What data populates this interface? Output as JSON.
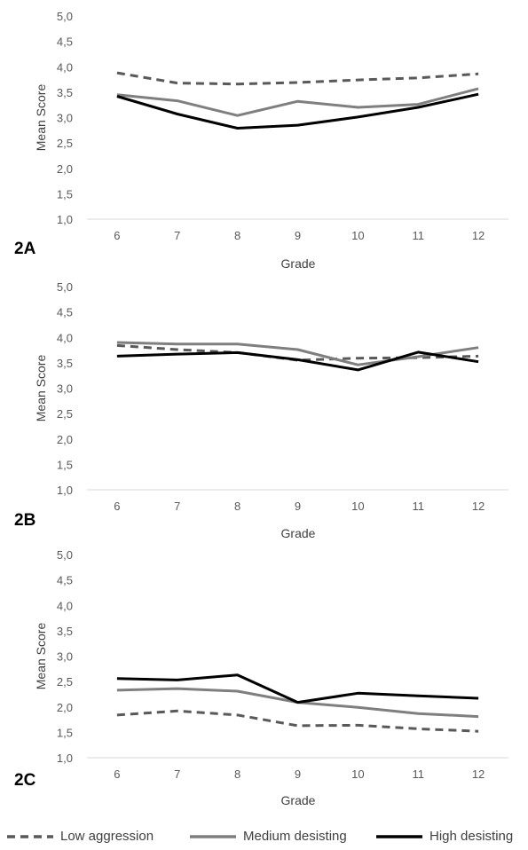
{
  "chart_data": [
    {
      "type": "line",
      "panel_label": "2A",
      "xlabel": "Grade",
      "ylabel": "Mean Score",
      "categories": [
        "6",
        "7",
        "8",
        "9",
        "10",
        "11",
        "12"
      ],
      "y_ticks": [
        "1,0",
        "1,5",
        "2,0",
        "2,5",
        "3,0",
        "3,5",
        "4,0",
        "4,5",
        "5,0"
      ],
      "ylim": [
        1.0,
        5.0
      ],
      "grid": false,
      "series": [
        {
          "name": "Low aggression",
          "values": [
            3.88,
            3.68,
            3.66,
            3.69,
            3.74,
            3.78,
            3.86
          ]
        },
        {
          "name": "Medium desisting",
          "values": [
            3.45,
            3.33,
            3.04,
            3.32,
            3.2,
            3.26,
            3.57
          ]
        },
        {
          "name": "High desisting",
          "values": [
            3.42,
            3.07,
            2.79,
            2.85,
            3.01,
            3.2,
            3.46
          ]
        }
      ]
    },
    {
      "type": "line",
      "panel_label": "2B",
      "xlabel": "Grade",
      "ylabel": "Mean Score",
      "categories": [
        "6",
        "7",
        "8",
        "9",
        "10",
        "11",
        "12"
      ],
      "y_ticks": [
        "1,0",
        "1,5",
        "2,0",
        "2,5",
        "3,0",
        "3,5",
        "4,0",
        "4,5",
        "5,0"
      ],
      "ylim": [
        1.0,
        5.0
      ],
      "grid": false,
      "series": [
        {
          "name": "Low aggression",
          "values": [
            3.84,
            3.76,
            3.7,
            3.55,
            3.59,
            3.6,
            3.63
          ]
        },
        {
          "name": "Medium desisting",
          "values": [
            3.9,
            3.87,
            3.87,
            3.76,
            3.46,
            3.62,
            3.8
          ]
        },
        {
          "name": "High desisting",
          "values": [
            3.63,
            3.67,
            3.7,
            3.56,
            3.36,
            3.71,
            3.52
          ]
        }
      ]
    },
    {
      "type": "line",
      "panel_label": "2C",
      "xlabel": "Grade",
      "ylabel": "Mean Score",
      "categories": [
        "6",
        "7",
        "8",
        "9",
        "10",
        "11",
        "12"
      ],
      "y_ticks": [
        "1,0",
        "1,5",
        "2,0",
        "2,5",
        "3,0",
        "3,5",
        "4,0",
        "4,5",
        "5,0"
      ],
      "ylim": [
        1.0,
        5.0
      ],
      "grid": false,
      "series": [
        {
          "name": "Low aggression",
          "values": [
            1.84,
            1.92,
            1.84,
            1.63,
            1.64,
            1.57,
            1.52
          ]
        },
        {
          "name": "Medium desisting",
          "values": [
            2.33,
            2.36,
            2.31,
            2.09,
            1.99,
            1.87,
            1.81
          ]
        },
        {
          "name": "High desisting",
          "values": [
            2.56,
            2.53,
            2.63,
            2.09,
            2.27,
            2.22,
            2.17
          ]
        }
      ]
    }
  ],
  "legend": {
    "placement": "bottom",
    "items": [
      {
        "label": "Low aggression",
        "color": "#595959",
        "style": "dashed"
      },
      {
        "label": "Medium desisting",
        "color": "#7f7f7f",
        "style": "solid"
      },
      {
        "label": "High desisting",
        "color": "#000000",
        "style": "solid"
      }
    ]
  }
}
